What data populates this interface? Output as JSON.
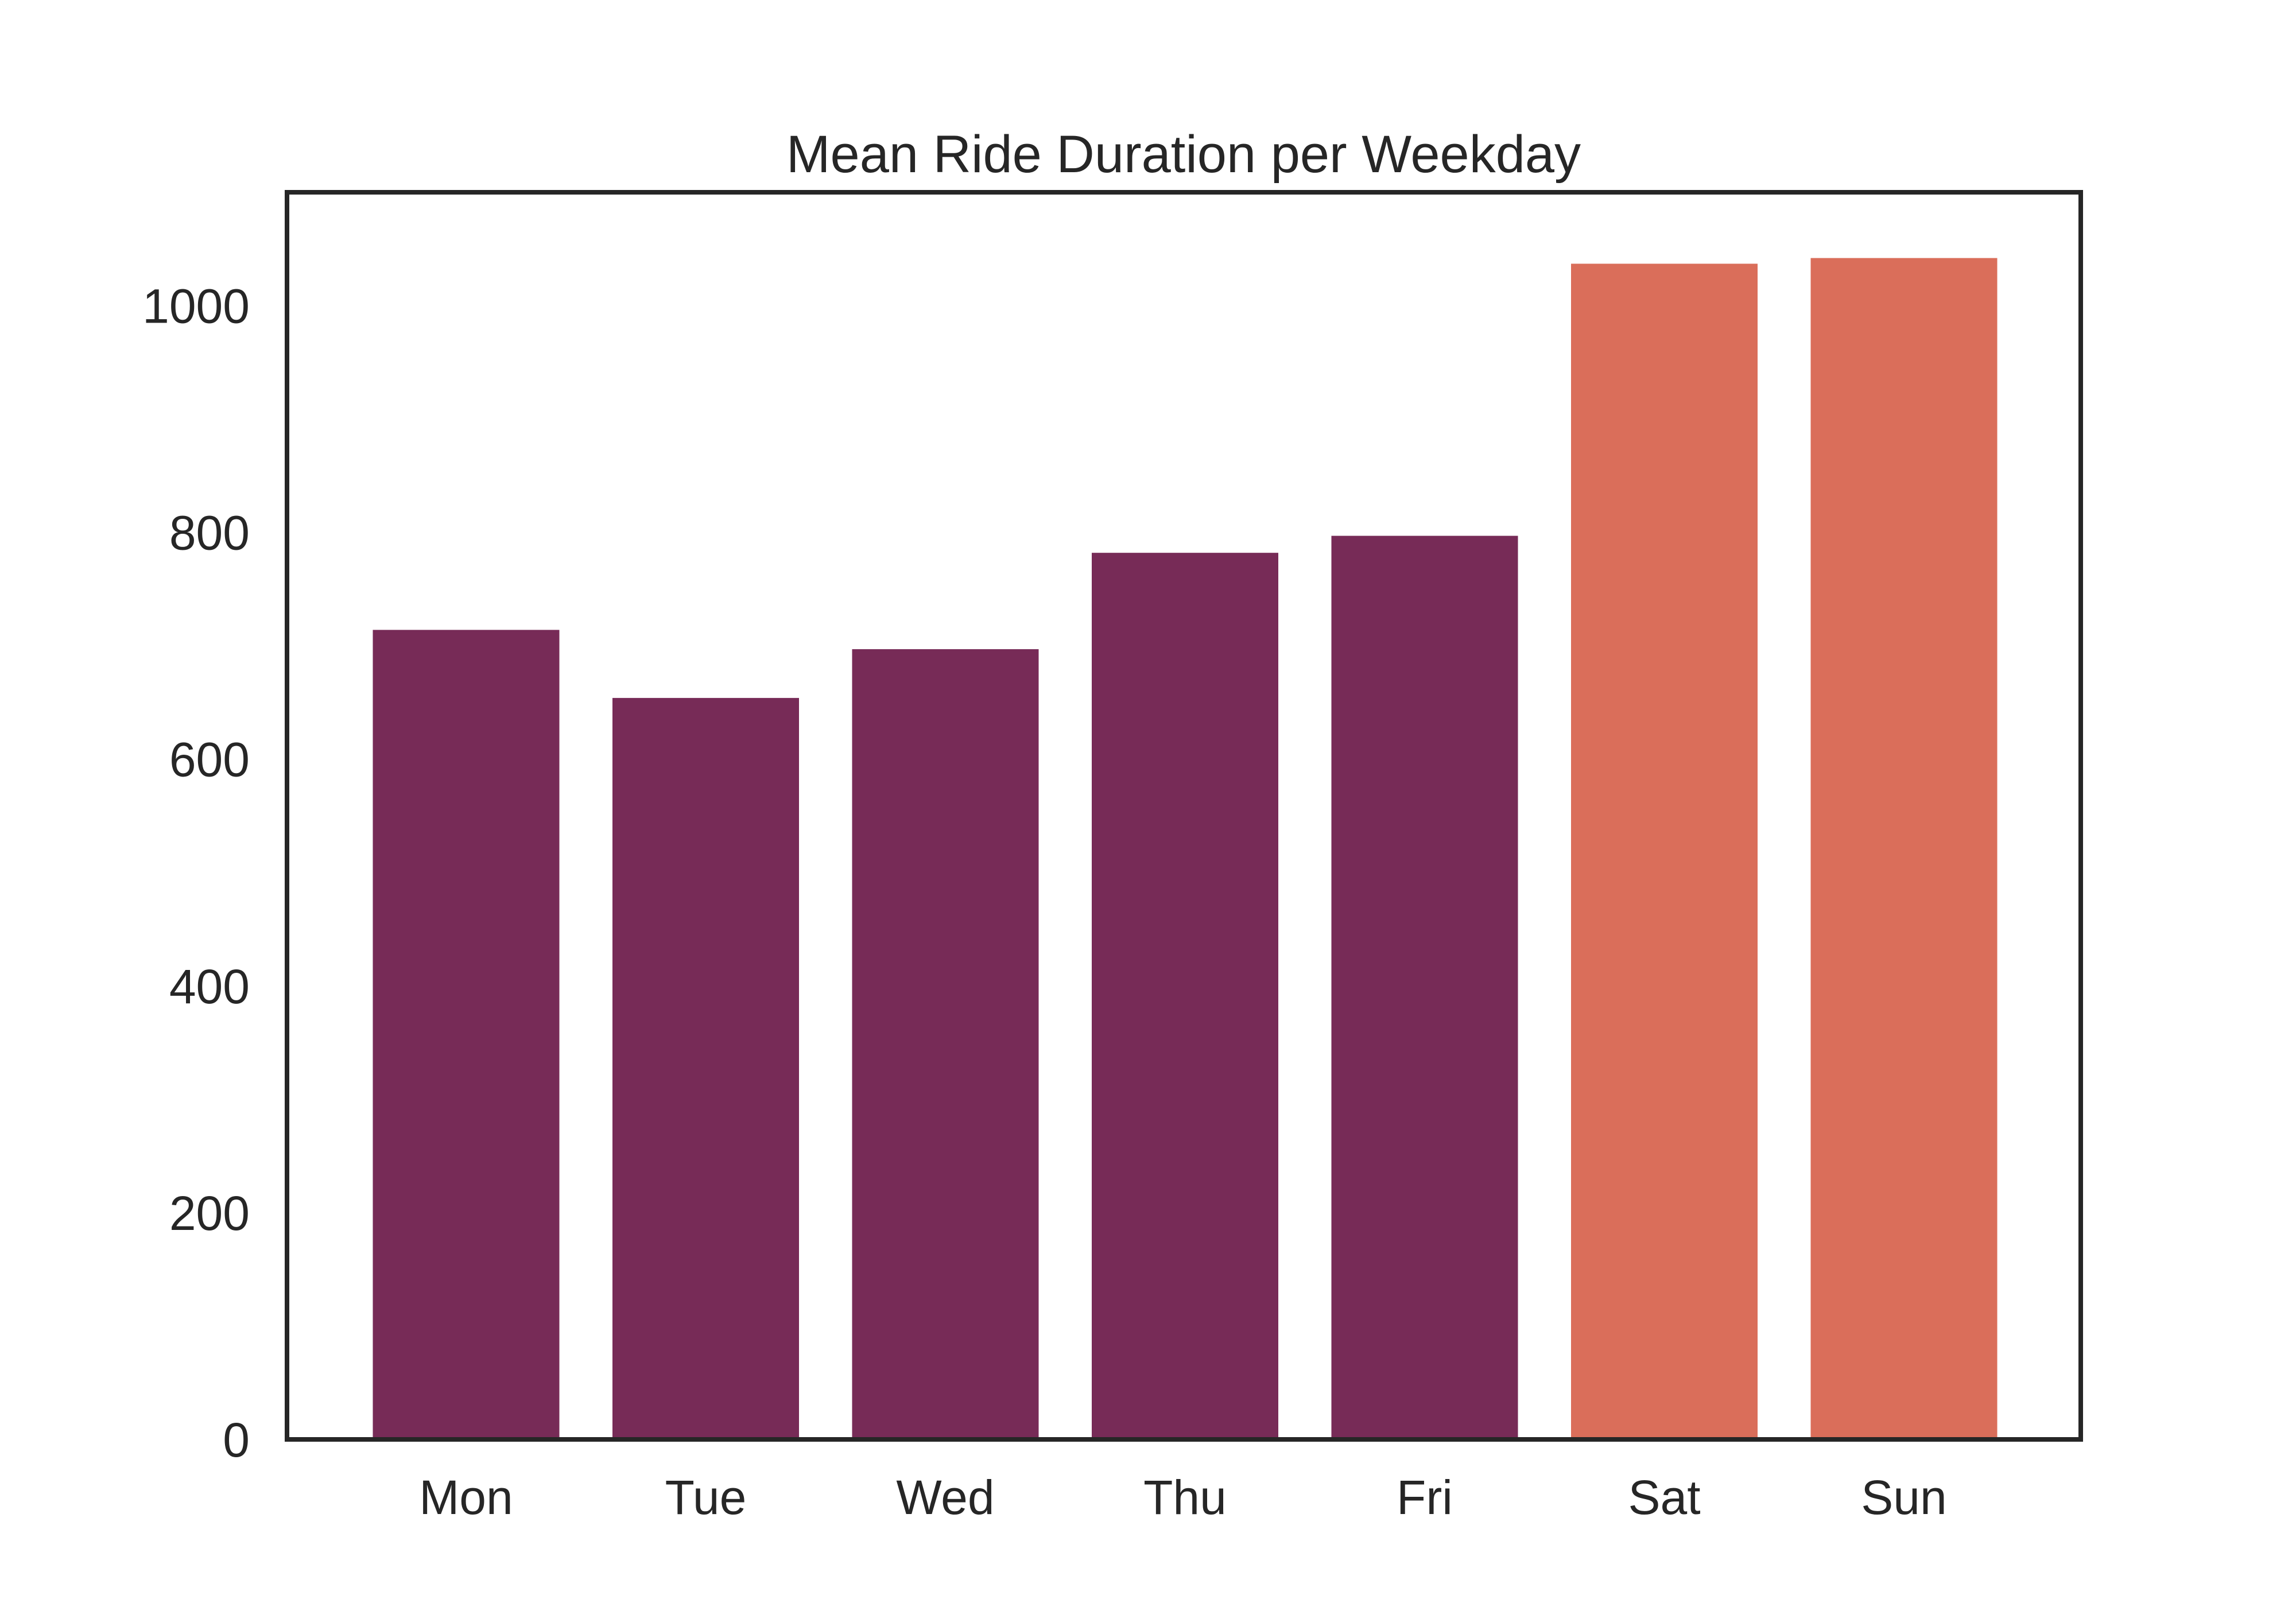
{
  "chart_data": {
    "type": "bar",
    "title": "Mean Ride Duration per Weekday",
    "xlabel": "",
    "ylabel": "",
    "categories": [
      "Mon",
      "Tue",
      "Wed",
      "Thu",
      "Fri",
      "Sat",
      "Sun"
    ],
    "values": [
      714,
      654,
      697,
      782,
      797,
      1037,
      1042
    ],
    "bar_colors": [
      "#772b57",
      "#772b57",
      "#772b57",
      "#772b57",
      "#772b57",
      "#da6e5a",
      "#da6e5a"
    ],
    "ylim": [
      0,
      1100
    ],
    "yticks": [
      0,
      200,
      400,
      600,
      800,
      1000
    ],
    "grid": false,
    "legend": "none",
    "frame_color": "#262626"
  }
}
